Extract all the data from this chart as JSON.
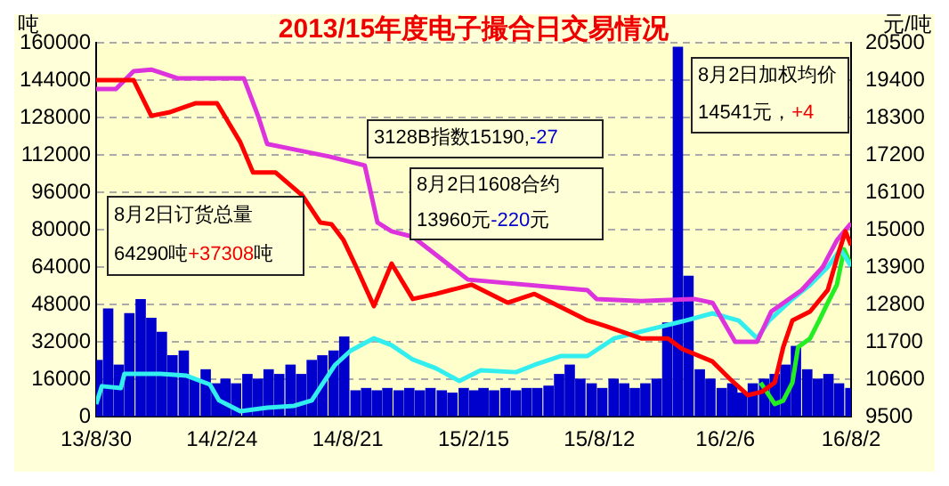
{
  "chart_data": {
    "type": "line",
    "title": "2013/15年度电子撮合日交易情况",
    "ylabel": "吨",
    "y2label": "元/吨",
    "xlim": [
      "2013-08-30",
      "2016-08-02"
    ],
    "xticks": [
      {
        "value": "2013-08-30",
        "label": "13/8/30"
      },
      {
        "value": "2014-02-24",
        "label": "14/2/24"
      },
      {
        "value": "2014-08-21",
        "label": "14/8/21"
      },
      {
        "value": "2015-02-15",
        "label": "15/2/15"
      },
      {
        "value": "2015-08-12",
        "label": "15/8/12"
      },
      {
        "value": "2016-02-06",
        "label": "16/2/6"
      },
      {
        "value": "2016-08-02",
        "label": "16/8/2"
      }
    ],
    "ylim": [
      0,
      160000
    ],
    "yticks": [
      0,
      16000,
      32000,
      48000,
      64000,
      80000,
      96000,
      112000,
      128000,
      144000,
      160000
    ],
    "y2lim": [
      9500,
      20500
    ],
    "y2ticks": [
      9500,
      10600,
      11700,
      12800,
      13900,
      15000,
      16100,
      17200,
      18300,
      19400,
      20500
    ],
    "grid": "y",
    "legend": false,
    "marker": "none",
    "line_style": "solid",
    "series": [
      {
        "type": "bar",
        "color": "#0000cc",
        "x": [
          "2013-09-01",
          "2013-09-16",
          "2013-10-01",
          "2013-10-16",
          "2013-11-01",
          "2013-11-16",
          "2013-12-01",
          "2013-12-16",
          "2014-01-01",
          "2014-01-16",
          "2014-02-01",
          "2014-02-16",
          "2014-03-01",
          "2014-03-16",
          "2014-04-01",
          "2014-04-16",
          "2014-05-01",
          "2014-05-16",
          "2014-06-01",
          "2014-06-16",
          "2014-07-01",
          "2014-07-16",
          "2014-08-01",
          "2014-08-16",
          "2014-09-01",
          "2014-09-16",
          "2014-10-01",
          "2014-10-16",
          "2014-11-01",
          "2014-11-16",
          "2014-12-01",
          "2014-12-16",
          "2015-01-01",
          "2015-01-16",
          "2015-02-01",
          "2015-02-16",
          "2015-03-01",
          "2015-03-16",
          "2015-04-01",
          "2015-04-16",
          "2015-05-01",
          "2015-05-16",
          "2015-06-01",
          "2015-06-16",
          "2015-07-01",
          "2015-07-16",
          "2015-08-01",
          "2015-08-16",
          "2015-09-01",
          "2015-09-16",
          "2015-10-01",
          "2015-10-16",
          "2015-11-01",
          "2015-11-16",
          "2015-12-01",
          "2015-12-16",
          "2016-01-01",
          "2016-01-16",
          "2016-02-01",
          "2016-02-16",
          "2016-03-01",
          "2016-03-16",
          "2016-04-01",
          "2016-04-16",
          "2016-05-01",
          "2016-05-16",
          "2016-06-01",
          "2016-06-16",
          "2016-07-01",
          "2016-07-16",
          "2016-08-01"
        ],
        "values": [
          24000,
          46000,
          22000,
          44000,
          50000,
          42000,
          36000,
          26000,
          28000,
          16000,
          20000,
          14000,
          16000,
          14000,
          18000,
          16000,
          20000,
          18000,
          22000,
          18000,
          24000,
          26000,
          28000,
          34000,
          11000,
          12000,
          11000,
          12000,
          11000,
          12000,
          11000,
          12000,
          11000,
          10000,
          12000,
          11000,
          12000,
          11000,
          12000,
          11000,
          12000,
          12000,
          13000,
          18000,
          22000,
          16000,
          14000,
          12000,
          16000,
          14000,
          12000,
          14000,
          16000,
          40000,
          158000,
          60000,
          20000,
          16000,
          12000,
          14000,
          10000,
          14000,
          16000,
          18000,
          22000,
          30000,
          20000,
          16000,
          18000,
          14000,
          12000
        ]
      },
      {
        "color": "#ff0000",
        "axis": "y2",
        "x": [
          "2013-08-30",
          "2013-10-22",
          "2013-11-16",
          "2013-12-11",
          "2014-01-18",
          "2014-02-17",
          "2014-03-22",
          "2014-04-09",
          "2014-05-11",
          "2014-06-18",
          "2014-07-13",
          "2014-07-29",
          "2014-08-15",
          "2014-09-02",
          "2014-09-27",
          "2014-10-22",
          "2014-11-21",
          "2014-12-24",
          "2015-02-12",
          "2015-04-04",
          "2015-05-12",
          "2015-07-01",
          "2015-07-26",
          "2015-08-20",
          "2015-10-10",
          "2015-11-17",
          "2015-12-07",
          "2016-01-19",
          "2016-02-13",
          "2016-03-09",
          "2016-03-29",
          "2016-04-16",
          "2016-04-28",
          "2016-05-11",
          "2016-06-05",
          "2016-06-30",
          "2016-07-13",
          "2016-07-25",
          "2016-08-02"
        ],
        "values": [
          19400,
          19400,
          18350,
          18450,
          18720,
          18720,
          17570,
          16680,
          16680,
          16000,
          15210,
          15160,
          14690,
          13900,
          12750,
          14000,
          12960,
          13110,
          13380,
          12850,
          13110,
          12590,
          12330,
          12170,
          11800,
          11800,
          11490,
          11120,
          10600,
          10130,
          10230,
          10500,
          11540,
          12330,
          12590,
          13220,
          14160,
          14950,
          14541
        ]
      },
      {
        "color": "#dd33dd",
        "axis": "y2",
        "x": [
          "2013-08-30",
          "2013-09-27",
          "2013-10-22",
          "2013-11-16",
          "2013-12-24",
          "2014-02-12",
          "2014-03-27",
          "2014-04-16",
          "2014-04-29",
          "2014-06-06",
          "2014-07-26",
          "2014-09-14",
          "2014-10-02",
          "2014-10-22",
          "2014-11-21",
          "2015-02-07",
          "2015-07-26",
          "2015-08-08",
          "2015-10-10",
          "2015-12-24",
          "2016-01-19",
          "2016-02-20",
          "2016-03-22",
          "2016-04-11",
          "2016-05-24",
          "2016-06-23",
          "2016-07-13",
          "2016-08-02"
        ],
        "values": [
          19140,
          19140,
          19660,
          19710,
          19450,
          19450,
          19450,
          18350,
          17520,
          17360,
          17150,
          16890,
          15210,
          14950,
          14790,
          13530,
          13220,
          12960,
          12900,
          12960,
          12850,
          11700,
          11700,
          12590,
          13220,
          13900,
          14690,
          15190
        ]
      },
      {
        "color": "#33eeee",
        "x": [
          "2013-08-30",
          "2013-09-07",
          "2013-10-04",
          "2013-10-09",
          "2013-11-29",
          "2014-01-05",
          "2014-02-07",
          "2014-02-20",
          "2014-03-22",
          "2014-04-29",
          "2014-06-06",
          "2014-07-01",
          "2014-08-03",
          "2014-08-25",
          "2014-09-27",
          "2014-10-22",
          "2014-11-21",
          "2014-12-24",
          "2015-01-26",
          "2015-02-25",
          "2015-04-16",
          "2015-05-12",
          "2015-06-18",
          "2015-07-26",
          "2015-09-02",
          "2015-10-22",
          "2015-12-12",
          "2016-01-19",
          "2016-02-25",
          "2016-03-22",
          "2016-04-08",
          "2016-05-11",
          "2016-06-05",
          "2016-06-30",
          "2016-07-18",
          "2016-08-02"
        ],
        "values": [
          5300,
          13000,
          12200,
          18300,
          18300,
          17500,
          13700,
          6900,
          2300,
          3800,
          4600,
          6900,
          22100,
          28200,
          33500,
          30500,
          24400,
          20600,
          15200,
          19800,
          19000,
          22100,
          25900,
          25900,
          33500,
          37300,
          41100,
          44200,
          41100,
          33500,
          41100,
          50300,
          56400,
          64000,
          71600,
          64290
        ]
      },
      {
        "color": "#22ee22",
        "axis": "y2",
        "x": [
          "2016-03-27",
          "2016-04-16",
          "2016-04-28",
          "2016-05-11",
          "2016-05-19",
          "2016-06-05",
          "2016-06-18",
          "2016-06-30",
          "2016-07-13",
          "2016-07-23",
          "2016-08-02"
        ],
        "values": [
          10500,
          9870,
          9970,
          10500,
          11540,
          11800,
          12330,
          12850,
          13380,
          14420,
          13960
        ]
      }
    ],
    "annotations": [
      "8月2日订货总量\n64290吨+37308吨",
      "3128B指数15190,-27",
      "8月2日1608合约\n13960元-220元",
      "8月2日加权均价\n14541元，+4"
    ]
  }
}
